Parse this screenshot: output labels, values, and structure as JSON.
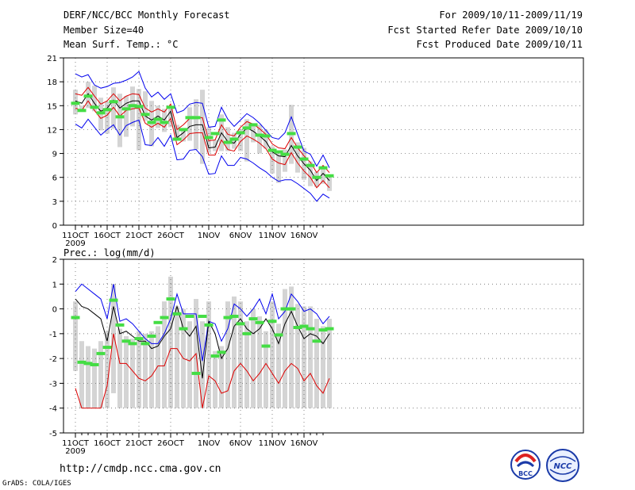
{
  "header": {
    "title": "DERF/NCC/BCC Monthly Forecast",
    "member_size": "Member Size=40",
    "variable": "Mean Surf. Temp.: °C",
    "period": "For 2009/10/11-2009/11/19",
    "refer_date": "Fcst Started Refer Date 2009/10/10",
    "produced_date": "Fcst Produced Date 2009/10/11"
  },
  "footer": {
    "url": "http://cmdp.ncc.cma.gov.cn",
    "credit": "GrADS: COLA/IGES",
    "logo_bcc_text": "BCC",
    "logo_ncc_text": "NCC"
  },
  "colors": {
    "upper": "#0000ee",
    "lower": "#dd0000",
    "mean": "#000000",
    "ensemble_box": "#d4d4d4",
    "observed": "#44dd44"
  },
  "chart_data": [
    {
      "type": "line",
      "title": "Mean Surf. Temp.: °C",
      "x_start_label": "11OCT",
      "xtick_labels": [
        "11OCT",
        "16OCT",
        "21OCT",
        "26OCT",
        "1NOV",
        "6NOV",
        "11NOV",
        "16NOV"
      ],
      "xtick_days": [
        0,
        5,
        10,
        15,
        21,
        26,
        31,
        36
      ],
      "year_label": "2009",
      "ylim": [
        0,
        21
      ],
      "yticks": [
        0,
        3,
        6,
        9,
        12,
        15,
        18,
        21
      ],
      "days": 40,
      "series": [
        {
          "name": "upper",
          "values": [
            19,
            18.6,
            18.9,
            17.6,
            17.2,
            17.4,
            17.8,
            17.9,
            18.2,
            18.6,
            19.3,
            17.2,
            16.1,
            16.7,
            15.8,
            16.5,
            14.1,
            14.4,
            15.2,
            15.4,
            15.3,
            12.3,
            12.4,
            14.8,
            13.3,
            12.4,
            13.2,
            14.0,
            13.5,
            12.8,
            11.9,
            11.0,
            10.8,
            11.6,
            13.6,
            11.4,
            9.3,
            8.9,
            7.4,
            8.8,
            7.2
          ]
        },
        {
          "name": "lower_envelope",
          "values": [
            12.7,
            12.2,
            13.3,
            12.3,
            11.3,
            12.0,
            12.6,
            11.3,
            12.5,
            12.9,
            13.2,
            10.1,
            10.0,
            11.0,
            9.9,
            11.3,
            8.2,
            8.3,
            9.4,
            9.5,
            8.6,
            6.4,
            6.5,
            8.7,
            7.5,
            7.5,
            8.5,
            8.3,
            7.8,
            7.2,
            6.7,
            6.0,
            5.5,
            5.7,
            5.7,
            5.2,
            4.6,
            4.0,
            3.0,
            3.9,
            3.4
          ]
        },
        {
          "name": "mean",
          "values": [
            15.6,
            15.3,
            16.5,
            15.3,
            14.3,
            14.7,
            15.7,
            14.7,
            15.3,
            15.6,
            15.6,
            13.7,
            13.2,
            13.7,
            13.2,
            14.3,
            11.0,
            11.6,
            12.4,
            12.6,
            12.6,
            9.7,
            9.8,
            11.6,
            10.5,
            10.3,
            11.4,
            12.2,
            11.8,
            11.2,
            10.5,
            9.2,
            8.7,
            8.6,
            10.0,
            8.7,
            7.7,
            6.9,
            5.6,
            6.5,
            5.6
          ]
        },
        {
          "name": "mean_plus_sd",
          "values": [
            16.5,
            16.3,
            17.3,
            16.2,
            15.2,
            15.6,
            16.5,
            15.6,
            16.2,
            16.5,
            16.4,
            14.7,
            14.2,
            14.6,
            14.2,
            15.2,
            12.0,
            12.6,
            13.4,
            13.5,
            13.5,
            10.6,
            10.7,
            12.6,
            11.4,
            11.2,
            12.3,
            13.0,
            12.7,
            12.1,
            11.4,
            10.2,
            9.7,
            9.6,
            11.0,
            9.7,
            8.7,
            7.9,
            6.6,
            7.5,
            6.6
          ]
        },
        {
          "name": "mean_minus_sd",
          "values": [
            14.7,
            14.4,
            15.6,
            14.4,
            13.4,
            13.8,
            14.8,
            13.7,
            14.4,
            14.6,
            14.7,
            12.8,
            12.3,
            12.8,
            12.3,
            13.4,
            10.1,
            10.7,
            11.5,
            11.6,
            11.6,
            8.8,
            8.8,
            10.7,
            9.5,
            9.3,
            10.5,
            11.2,
            10.8,
            10.3,
            9.6,
            8.3,
            7.8,
            7.6,
            9.1,
            7.8,
            6.8,
            6.0,
            4.7,
            5.6,
            4.7
          ]
        },
        {
          "name": "observed",
          "values": [
            15.3,
            14.4,
            16.2,
            14.8,
            14.1,
            14.5,
            15.5,
            13.6,
            14.6,
            15.0,
            14.9,
            13.9,
            12.9,
            13.3,
            12.9,
            14.8,
            10.8,
            12.0,
            13.5,
            13.5,
            null,
            11.0,
            11.5,
            13.2,
            10.4,
            10.8,
            11.6,
            12.2,
            12.6,
            11.3,
            11.2,
            9.4,
            9.2,
            8.9,
            11.5,
            9.8,
            8.3,
            7.5,
            6.0,
            7.2,
            6.2
          ]
        },
        {
          "name": "box_top",
          "values": [
            17,
            15,
            18,
            17.5,
            16,
            15.5,
            17.3,
            16.5,
            16.2,
            17.4,
            17.1,
            16.8,
            15.6,
            15.0,
            14.6,
            14.6,
            12.6,
            12.1,
            14.8,
            15.8,
            17.0,
            12.3,
            10.7,
            13.9,
            12.3,
            11.6,
            12.1,
            13.3,
            12.8,
            12.6,
            12.0,
            9.9,
            9.0,
            9.5,
            15.1,
            10.4,
            9.7,
            8.0,
            6.7,
            7.4,
            6.3
          ]
        },
        {
          "name": "box_bottom",
          "values": [
            13.9,
            14.3,
            14.7,
            14.3,
            11.9,
            11.5,
            12.1,
            9.8,
            11.1,
            12.4,
            9.4,
            13.1,
            9.9,
            12.2,
            11.7,
            12.3,
            11.0,
            10.5,
            10.6,
            9.5,
            7.7,
            9.1,
            9.3,
            9.3,
            9.3,
            9.6,
            9.3,
            8.0,
            10.4,
            9.0,
            9.6,
            6.5,
            5.3,
            6.7,
            7.7,
            6.6,
            5.7,
            4.9,
            4.8,
            5.2,
            4.3
          ]
        }
      ]
    },
    {
      "type": "line",
      "title": "Prec.: log(mm/d)",
      "xtick_labels": [
        "11OCT",
        "16OCT",
        "21OCT",
        "26OCT",
        "1NOV",
        "6NOV",
        "11NOV",
        "16NOV"
      ],
      "xtick_days": [
        0,
        5,
        10,
        15,
        21,
        26,
        31,
        36
      ],
      "year_label": "2009",
      "ylim": [
        -5,
        2
      ],
      "yticks": [
        -5,
        -4,
        -3,
        -2,
        -1,
        0,
        1,
        2
      ],
      "days": 40,
      "series": [
        {
          "name": "upper",
          "values": [
            0.7,
            1.0,
            0.8,
            0.6,
            0.4,
            -0.4,
            1.0,
            -0.5,
            -0.4,
            -0.6,
            -0.9,
            -1.2,
            -1.4,
            -1.4,
            -1.0,
            -0.4,
            0.6,
            -0.2,
            -0.2,
            -0.2,
            -2.1,
            -0.5,
            -0.6,
            -1.3,
            -0.8,
            0.2,
            0.0,
            -0.3,
            0.0,
            0.4,
            -0.2,
            0.6,
            -0.4,
            -0.1,
            0.6,
            0.3,
            -0.1,
            0.0,
            -0.2,
            -0.6,
            -0.3
          ]
        },
        {
          "name": "mean",
          "values": [
            0.4,
            0.1,
            0.0,
            -0.2,
            -0.4,
            -1.3,
            0.1,
            -1.0,
            -0.9,
            -1.1,
            -1.3,
            -1.3,
            -1.6,
            -1.5,
            -1.1,
            -0.8,
            0.1,
            -0.8,
            -1.1,
            -0.7,
            -2.8,
            -0.5,
            -1.0,
            -2.0,
            -1.6,
            -0.7,
            -0.4,
            -0.8,
            -1.0,
            -0.8,
            -0.4,
            -0.8,
            -1.4,
            -0.6,
            -0.1,
            -0.7,
            -1.2,
            -1.0,
            -1.1,
            -1.4,
            -1.0
          ]
        },
        {
          "name": "lower",
          "values": [
            -3.2,
            -4.0,
            -4.0,
            -4.0,
            -4.0,
            -3.1,
            -1.0,
            -2.2,
            -2.2,
            -2.5,
            -2.8,
            -2.9,
            -2.7,
            -2.3,
            -2.3,
            -1.6,
            -1.6,
            -2.0,
            -2.1,
            -1.8,
            -4.0,
            -2.7,
            -2.9,
            -3.4,
            -3.3,
            -2.5,
            -2.2,
            -2.5,
            -2.9,
            -2.6,
            -2.2,
            -2.6,
            -3.0,
            -2.5,
            -2.2,
            -2.4,
            -2.9,
            -2.6,
            -3.1,
            -3.4,
            -2.8
          ]
        },
        {
          "name": "observed",
          "values": [
            -0.35,
            -2.15,
            -2.2,
            -2.25,
            -1.8,
            -1.55,
            0.35,
            -0.65,
            -1.3,
            -1.4,
            -1.2,
            -1.4,
            -1.1,
            -0.55,
            -0.35,
            0.4,
            -0.2,
            -0.8,
            -0.3,
            -2.6,
            -0.3,
            -0.65,
            -1.9,
            -1.75,
            -0.35,
            -0.3,
            -0.6,
            -1.0,
            -0.4,
            -0.55,
            -1.5,
            -0.5,
            -1.05,
            0.0,
            0.0,
            -0.75,
            -0.7,
            -0.8,
            -1.3,
            -0.85,
            -0.8
          ]
        },
        {
          "name": "box_top",
          "values": [
            0.3,
            -1.3,
            -1.5,
            -1.6,
            -1.3,
            -0.9,
            1.0,
            -0.8,
            -1.1,
            -1.2,
            -0.9,
            -1.0,
            -0.9,
            -0.7,
            0.3,
            1.3,
            0.1,
            0.0,
            -0.5,
            0.4,
            -0.5,
            0.3,
            -1.7,
            -1.5,
            0.3,
            0.5,
            0.3,
            -0.5,
            0.0,
            -0.3,
            -0.9,
            0.3,
            -0.6,
            0.8,
            0.9,
            0.2,
            0.1,
            0.1,
            -0.4,
            -0.7,
            -0.4
          ]
        },
        {
          "name": "box_bottom",
          "values": [
            -2.5,
            -4.0,
            -4.0,
            -4.0,
            -4.0,
            -4.0,
            -3.4,
            -4.0,
            -4.0,
            -4.0,
            -4.0,
            -4.0,
            -4.0,
            -4.0,
            -4.0,
            -4.0,
            -4.0,
            -4.0,
            -4.0,
            -4.0,
            -4.0,
            -4.0,
            -4.0,
            -4.0,
            -4.0,
            -4.0,
            -4.0,
            -4.0,
            -4.0,
            -4.0,
            -4.0,
            -4.0,
            -4.0,
            -4.0,
            -4.0,
            -4.0,
            -4.0,
            -4.0,
            -4.0,
            -4.0,
            -4.0
          ]
        }
      ]
    }
  ]
}
